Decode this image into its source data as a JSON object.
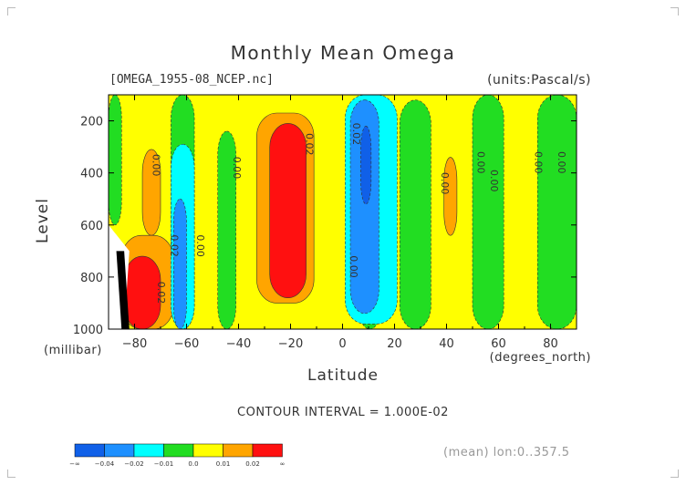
{
  "header": {
    "title": "Monthly Mean Omega",
    "file_label": "[OMEGA_1955-08_NCEP.nc]",
    "units_label": "(units:Pascal/s)"
  },
  "axes": {
    "y_title": "Level",
    "y_unit": "(millibar)",
    "x_title": "Latitude",
    "x_unit": "(degrees_north)"
  },
  "footer": {
    "contour_interval": "CONTOUR INTERVAL = 1.000E-02",
    "mean_note": "(mean) lon:0..357.5"
  },
  "colors": {
    "lt_neg_04": "#1060e8",
    "neg_04_02": "#1e90ff",
    "neg_02_01": "#00ffff",
    "neg_01_0": "#22dd22",
    "zero_01": "#ffff00",
    "pos_01_02": "#ffa500",
    "gt_02": "#ff1010",
    "missing": "#ffffff",
    "deep": "#000000"
  },
  "colorbar": {
    "colors": [
      "#1060e8",
      "#1e90ff",
      "#00ffff",
      "#22dd22",
      "#ffff00",
      "#ffa500",
      "#ff1010"
    ],
    "labels": [
      "-∞",
      "-0.04",
      "-0.02",
      "-0.01",
      "0.0",
      "0.01",
      "0.02",
      "∞"
    ]
  },
  "chart_data": {
    "type": "heatmap",
    "title": "Monthly Mean Omega",
    "subtitle": "[OMEGA_1955-08_NCEP.nc]",
    "units": "(units:Pascal/s)",
    "xlabel": "Latitude",
    "x_unit": "(degrees_north)",
    "ylabel": "Level",
    "y_unit": "(millibar)",
    "xlim": [
      -90,
      90
    ],
    "ylim": [
      1000,
      100
    ],
    "x_ticks": [
      "-80",
      "-60",
      "-40",
      "-20",
      "0",
      "20",
      "40",
      "60",
      "80"
    ],
    "x_tick_values": [
      -80,
      -60,
      -40,
      -20,
      0,
      20,
      40,
      60,
      80
    ],
    "y_ticks": [
      "200",
      "400",
      "600",
      "800",
      "1000"
    ],
    "y_tick_values": [
      200,
      400,
      600,
      800,
      1000
    ],
    "contour_interval": 0.01,
    "levels": [
      -0.04,
      -0.02,
      -0.01,
      0.0,
      0.01,
      0.02
    ],
    "background_class": "zero_01",
    "regions": [
      {
        "class": "neg_01_0",
        "lat": [
          -90,
          -85
        ],
        "lev": [
          100,
          600
        ]
      },
      {
        "class": "neg_01_0",
        "lat": [
          -66,
          -57
        ],
        "lev": [
          100,
          1000
        ]
      },
      {
        "class": "neg_01_0",
        "lat": [
          -48,
          -41
        ],
        "lev": [
          240,
          1000
        ]
      },
      {
        "class": "neg_01_0",
        "lat": [
          6,
          15
        ],
        "lev": [
          100,
          1000
        ]
      },
      {
        "class": "neg_01_0",
        "lat": [
          22,
          34
        ],
        "lev": [
          120,
          1000
        ]
      },
      {
        "class": "neg_01_0",
        "lat": [
          50,
          62
        ],
        "lev": [
          100,
          1000
        ]
      },
      {
        "class": "neg_01_0",
        "lat": [
          75,
          90
        ],
        "lev": [
          100,
          1000
        ]
      },
      {
        "class": "pos_01_02",
        "lat": [
          -33,
          -11
        ],
        "lev": [
          170,
          900
        ]
      },
      {
        "class": "pos_01_02",
        "lat": [
          -77,
          -70
        ],
        "lev": [
          310,
          640
        ]
      },
      {
        "class": "pos_01_02",
        "lat": [
          39,
          44
        ],
        "lev": [
          340,
          640
        ]
      },
      {
        "class": "pos_01_02",
        "lat": [
          -85,
          -65
        ],
        "lev": [
          640,
          1000
        ]
      },
      {
        "class": "gt_02",
        "lat": [
          -28,
          -14
        ],
        "lev": [
          210,
          880
        ]
      },
      {
        "class": "gt_02",
        "lat": [
          -84,
          -70
        ],
        "lev": [
          720,
          1000
        ]
      },
      {
        "class": "neg_02_01",
        "lat": [
          -66,
          -57
        ],
        "lev": [
          290,
          1000
        ]
      },
      {
        "class": "neg_02_01",
        "lat": [
          1,
          21
        ],
        "lev": [
          100,
          980
        ]
      },
      {
        "class": "neg_04_02",
        "lat": [
          -65,
          -60
        ],
        "lev": [
          500,
          1000
        ]
      },
      {
        "class": "neg_04_02",
        "lat": [
          3,
          14
        ],
        "lev": [
          120,
          940
        ]
      },
      {
        "class": "lt_neg_04",
        "lat": [
          7,
          11
        ],
        "lev": [
          220,
          520
        ]
      }
    ],
    "annotations": [
      {
        "text": "0.00",
        "lat": -73,
        "lev": 370
      },
      {
        "text": "0.00",
        "lat": -42,
        "lev": 380
      },
      {
        "text": "0.02",
        "lat": -14,
        "lev": 290
      },
      {
        "text": "0.02",
        "lat": 4,
        "lev": 250
      },
      {
        "text": "0.00",
        "lat": 38,
        "lev": 440
      },
      {
        "text": "0.00",
        "lat": 57,
        "lev": 430
      },
      {
        "text": "0.00",
        "lat": 52,
        "lev": 360
      },
      {
        "text": "0.00",
        "lat": 74,
        "lev": 360
      },
      {
        "text": "0.00",
        "lat": 83,
        "lev": 360
      },
      {
        "text": "0.02",
        "lat": -66,
        "lev": 680
      },
      {
        "text": "0.00",
        "lat": -56,
        "lev": 680
      },
      {
        "text": "0.00",
        "lat": 3,
        "lev": 760
      },
      {
        "text": "0.02",
        "lat": -71,
        "lev": 860
      }
    ]
  }
}
